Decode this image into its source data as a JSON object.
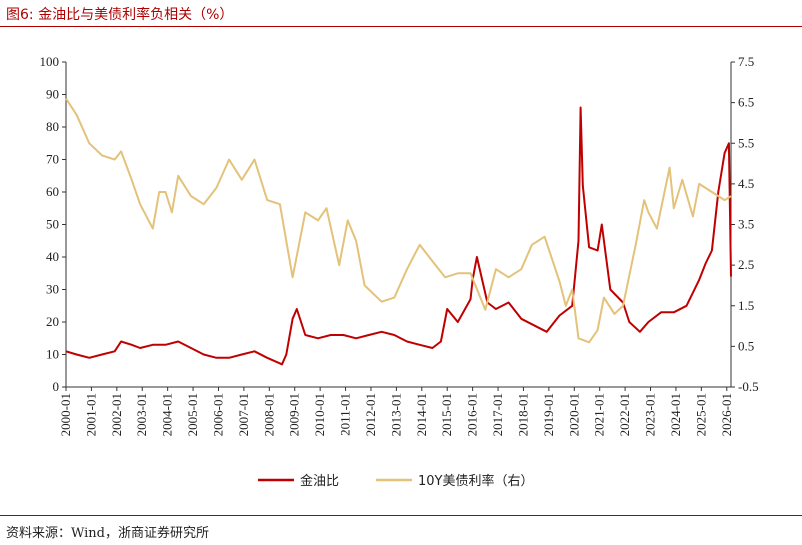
{
  "figure": {
    "title": "图6:  金油比与美债利率负相关（%）",
    "source": "资料来源：Wind，浙商证券研究所"
  },
  "colors": {
    "gold_oil": "#c00000",
    "us10y": "#e3c27a",
    "accent": "#b00000"
  },
  "chart_data": {
    "type": "line",
    "title": "金油比与美债利率负相关（%）",
    "x_ticks": [
      "2000-01",
      "2001-01",
      "2002-01",
      "2003-01",
      "2004-01",
      "2005-01",
      "2006-01",
      "2007-01",
      "2008-01",
      "2009-01",
      "2010-01",
      "2011-01",
      "2012-01",
      "2013-01",
      "2014-01",
      "2015-01",
      "2016-01",
      "2017-01",
      "2018-01",
      "2019-01",
      "2020-01",
      "2021-01",
      "2022-01",
      "2023-01",
      "2024-01",
      "2025-01",
      "2026-01"
    ],
    "y_left": {
      "ylim": [
        0,
        100
      ],
      "ticks": [
        "0",
        "10",
        "20",
        "30",
        "40",
        "50",
        "60",
        "70",
        "80",
        "90",
        "100"
      ]
    },
    "y_right": {
      "ylim": [
        -0.5,
        7.5
      ],
      "ticks": [
        "-0.5",
        "0.5",
        "1.5",
        "2.5",
        "3.5",
        "4.5",
        "5.5",
        "6.5",
        "7.5"
      ]
    },
    "grid": false,
    "legend_position": "bottom",
    "series": [
      {
        "name": "金油比",
        "axis": "left",
        "points": [
          [
            "2000-01",
            11
          ],
          [
            "2000-06",
            10
          ],
          [
            "2000-12",
            9
          ],
          [
            "2001-06",
            10
          ],
          [
            "2001-12",
            11
          ],
          [
            "2002-03",
            14
          ],
          [
            "2002-08",
            13
          ],
          [
            "2002-12",
            12
          ],
          [
            "2003-06",
            13
          ],
          [
            "2003-12",
            13
          ],
          [
            "2004-06",
            14
          ],
          [
            "2004-12",
            12
          ],
          [
            "2005-06",
            10
          ],
          [
            "2005-12",
            9
          ],
          [
            "2006-06",
            9
          ],
          [
            "2006-12",
            10
          ],
          [
            "2007-06",
            11
          ],
          [
            "2007-12",
            9
          ],
          [
            "2008-07",
            7
          ],
          [
            "2008-09",
            10
          ],
          [
            "2008-12",
            21
          ],
          [
            "2009-02",
            24
          ],
          [
            "2009-06",
            16
          ],
          [
            "2009-12",
            15
          ],
          [
            "2010-06",
            16
          ],
          [
            "2010-12",
            16
          ],
          [
            "2011-06",
            15
          ],
          [
            "2011-12",
            16
          ],
          [
            "2012-06",
            17
          ],
          [
            "2012-12",
            16
          ],
          [
            "2013-06",
            14
          ],
          [
            "2013-12",
            13
          ],
          [
            "2014-06",
            12
          ],
          [
            "2014-10",
            14
          ],
          [
            "2015-01",
            24
          ],
          [
            "2015-06",
            20
          ],
          [
            "2015-12",
            27
          ],
          [
            "2016-01",
            33
          ],
          [
            "2016-03",
            40
          ],
          [
            "2016-08",
            26
          ],
          [
            "2016-12",
            24
          ],
          [
            "2017-06",
            26
          ],
          [
            "2017-12",
            21
          ],
          [
            "2018-06",
            19
          ],
          [
            "2018-12",
            17
          ],
          [
            "2019-06",
            22
          ],
          [
            "2019-12",
            25
          ],
          [
            "2020-03",
            45
          ],
          [
            "2020-04",
            86
          ],
          [
            "2020-05",
            62
          ],
          [
            "2020-08",
            43
          ],
          [
            "2020-12",
            42
          ],
          [
            "2021-02",
            50
          ],
          [
            "2021-06",
            30
          ],
          [
            "2021-12",
            26
          ],
          [
            "2022-03",
            20
          ],
          [
            "2022-08",
            17
          ],
          [
            "2022-12",
            20
          ],
          [
            "2023-06",
            23
          ],
          [
            "2023-12",
            23
          ],
          [
            "2024-06",
            25
          ],
          [
            "2024-12",
            33
          ],
          [
            "2025-03",
            38
          ],
          [
            "2025-06",
            42
          ],
          [
            "2025-09",
            60
          ],
          [
            "2025-12",
            72
          ],
          [
            "2026-02",
            75
          ],
          [
            "2026-03",
            34
          ]
        ]
      },
      {
        "name": "10Y美债利率（右）",
        "axis": "right",
        "points": [
          [
            "2000-01",
            6.6
          ],
          [
            "2000-06",
            6.2
          ],
          [
            "2000-12",
            5.5
          ],
          [
            "2001-06",
            5.2
          ],
          [
            "2001-12",
            5.1
          ],
          [
            "2002-03",
            5.3
          ],
          [
            "2002-08",
            4.6
          ],
          [
            "2002-12",
            4.0
          ],
          [
            "2003-06",
            3.4
          ],
          [
            "2003-09",
            4.3
          ],
          [
            "2003-12",
            4.3
          ],
          [
            "2004-03",
            3.8
          ],
          [
            "2004-06",
            4.7
          ],
          [
            "2004-12",
            4.2
          ],
          [
            "2005-06",
            4.0
          ],
          [
            "2005-12",
            4.4
          ],
          [
            "2006-06",
            5.1
          ],
          [
            "2006-12",
            4.6
          ],
          [
            "2007-06",
            5.1
          ],
          [
            "2007-12",
            4.1
          ],
          [
            "2008-06",
            4.0
          ],
          [
            "2008-12",
            2.2
          ],
          [
            "2009-06",
            3.8
          ],
          [
            "2009-12",
            3.6
          ],
          [
            "2010-04",
            3.9
          ],
          [
            "2010-10",
            2.5
          ],
          [
            "2011-02",
            3.6
          ],
          [
            "2011-06",
            3.1
          ],
          [
            "2011-10",
            2.0
          ],
          [
            "2012-06",
            1.6
          ],
          [
            "2012-12",
            1.7
          ],
          [
            "2013-06",
            2.4
          ],
          [
            "2013-12",
            3.0
          ],
          [
            "2014-06",
            2.6
          ],
          [
            "2014-12",
            2.2
          ],
          [
            "2015-06",
            2.3
          ],
          [
            "2015-12",
            2.3
          ],
          [
            "2016-07",
            1.4
          ],
          [
            "2016-12",
            2.4
          ],
          [
            "2017-06",
            2.2
          ],
          [
            "2017-12",
            2.4
          ],
          [
            "2018-05",
            3.0
          ],
          [
            "2018-11",
            3.2
          ],
          [
            "2019-06",
            2.1
          ],
          [
            "2019-09",
            1.5
          ],
          [
            "2019-12",
            1.9
          ],
          [
            "2020-03",
            0.7
          ],
          [
            "2020-08",
            0.6
          ],
          [
            "2020-12",
            0.9
          ],
          [
            "2021-03",
            1.7
          ],
          [
            "2021-08",
            1.3
          ],
          [
            "2021-12",
            1.5
          ],
          [
            "2022-06",
            3.0
          ],
          [
            "2022-10",
            4.1
          ],
          [
            "2022-12",
            3.8
          ],
          [
            "2023-04",
            3.4
          ],
          [
            "2023-10",
            4.9
          ],
          [
            "2023-12",
            3.9
          ],
          [
            "2024-04",
            4.6
          ],
          [
            "2024-09",
            3.7
          ],
          [
            "2024-12",
            4.5
          ],
          [
            "2025-06",
            4.3
          ],
          [
            "2025-12",
            4.1
          ],
          [
            "2026-03",
            4.2
          ]
        ]
      }
    ]
  }
}
